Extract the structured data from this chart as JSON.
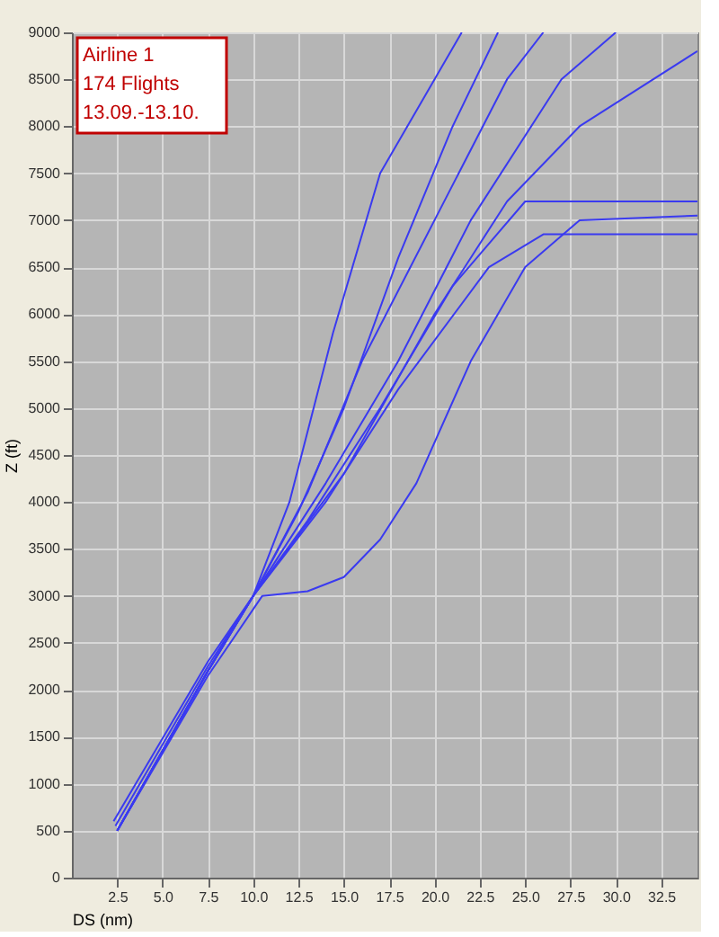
{
  "chart_data": {
    "type": "line",
    "xlabel": "DS (nm)",
    "ylabel": "Z (ft)",
    "annotations": [
      "Airline 1",
      "174 Flights",
      "13.09.-13.10."
    ],
    "xlim": [
      0,
      34.5
    ],
    "ylim": [
      0,
      9000
    ],
    "xticks": [
      2.5,
      {
        "value": 5,
        "label": "5.0"
      },
      7.5,
      {
        "value": 10,
        "label": "10.0"
      },
      12.5,
      {
        "value": 15,
        "label": "15.0"
      },
      17.5,
      {
        "value": 20,
        "label": "20.0"
      },
      22.5,
      {
        "value": 25,
        "label": "25.0"
      },
      27.5,
      {
        "value": 30,
        "label": "30.0"
      },
      32.5
    ],
    "yticks": [
      0,
      500,
      1000,
      1500,
      2000,
      2500,
      3000,
      3500,
      4000,
      4500,
      5000,
      5500,
      6000,
      6500,
      7000,
      7500,
      8000,
      8500,
      9000
    ],
    "grid": true,
    "marker": "none",
    "line_style": "solid",
    "series": [
      {
        "color": "#3a3af0",
        "x": [
          2.3,
          7.5,
          10,
          12,
          14.4,
          17,
          21.5
        ],
        "values": [
          600,
          2300,
          3000,
          4000,
          5800,
          7500,
          9000
        ]
      },
      {
        "color": "#3a3af0",
        "x": [
          2.5,
          7.5,
          10,
          13,
          16,
          20,
          24,
          26
        ],
        "values": [
          500,
          2200,
          3000,
          4100,
          5500,
          7000,
          8500,
          9000
        ]
      },
      {
        "color": "#3a3af0",
        "x": [
          2.5,
          7.5,
          10,
          14,
          18,
          22,
          27,
          30
        ],
        "values": [
          500,
          2200,
          3000,
          4200,
          5500,
          7000,
          8500,
          9000
        ]
      },
      {
        "color": "#3a3af0",
        "x": [
          2.4,
          7.5,
          10,
          15,
          20,
          24,
          28,
          34.5
        ],
        "values": [
          550,
          2250,
          3000,
          4300,
          6000,
          7200,
          8000,
          8800
        ]
      },
      {
        "color": "#3a3af0",
        "x": [
          2.5,
          7.5,
          10,
          14,
          18,
          23,
          26,
          34.5
        ],
        "values": [
          500,
          2200,
          3000,
          4000,
          5200,
          6500,
          6850,
          6850
        ]
      },
      {
        "color": "#3a3af0",
        "x": [
          2.5,
          7.5,
          10,
          13,
          17,
          21,
          25,
          34.5
        ],
        "values": [
          500,
          2200,
          3000,
          3800,
          5000,
          6300,
          7200,
          7200
        ]
      },
      {
        "color": "#3a3af0",
        "x": [
          2.5,
          7.5,
          10.5,
          13,
          15,
          17,
          19,
          22,
          25,
          28,
          34.5
        ],
        "values": [
          500,
          2150,
          3000,
          3050,
          3200,
          3600,
          4200,
          5500,
          6500,
          7000,
          7050
        ]
      },
      {
        "color": "#3a3af0",
        "x": [
          2.5,
          7.5,
          10,
          12.5,
          15,
          18,
          21,
          23.5
        ],
        "values": [
          500,
          2200,
          3000,
          3900,
          5000,
          6600,
          8000,
          9000
        ]
      }
    ]
  }
}
